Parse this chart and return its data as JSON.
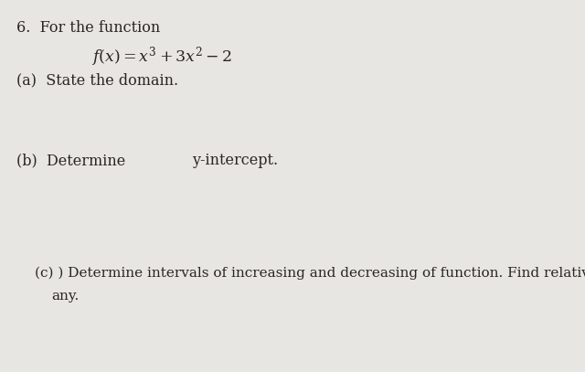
{
  "background_color": "#e8e6e3",
  "text_color": "#2a2520",
  "title_number": "6.",
  "title_text": "For the function",
  "part_a_label": "(a)",
  "part_a_text": "State the domain.",
  "part_b_label": "(b)",
  "part_b_text": "Determine",
  "part_b_text2": "y-intercept.",
  "part_c_label": "(c) )",
  "part_c_text": "Determine intervals of increasing and decreasing of function. Find relative extrema if",
  "part_c_text2": "any.",
  "figwidth": 6.4,
  "figheight": 4.07,
  "dpi": 100
}
